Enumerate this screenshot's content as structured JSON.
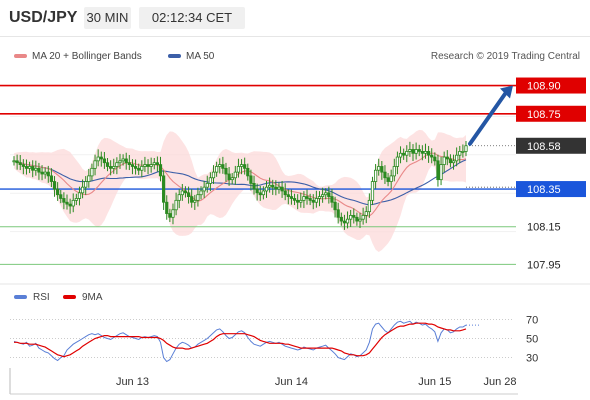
{
  "header": {
    "symbol": "USD/JPY",
    "timeframe": "30 MIN",
    "time": "02:12:34 CET"
  },
  "legend": {
    "ma20_label": "MA 20 + Bollinger Bands",
    "ma50_label": "MA 50",
    "credit": "Research © 2019 Trading Central"
  },
  "colors": {
    "candle": "#2b8a20",
    "bollinger_fill": "#fcd9d9",
    "ma20": "#e98888",
    "ma50": "#3c5fa8",
    "resistance": "#e00000",
    "support": "#7bc87b",
    "pivot": "#1a56db",
    "last": "#333333",
    "arrow": "#2456a4",
    "rsi": "#5a7fd6",
    "rsi_ma": "#e00000"
  },
  "chart_data": [
    {
      "type": "line",
      "name": "price",
      "ylim": [
        107.92,
        108.94
      ],
      "levels": [
        {
          "value": 108.9,
          "label": "108.90",
          "kind": "resistance"
        },
        {
          "value": 108.75,
          "label": "108.75",
          "kind": "resistance"
        },
        {
          "value": 108.58,
          "label": "108.58",
          "kind": "last"
        },
        {
          "value": 108.35,
          "label": "108.35",
          "kind": "pivot"
        },
        {
          "value": 108.15,
          "label": "108.15",
          "kind": "support"
        },
        {
          "value": 107.95,
          "label": "107.95",
          "kind": "support"
        }
      ],
      "last_value": 108.58,
      "forecast": {
        "from": 108.58,
        "to": 108.9
      },
      "x_ticks": [
        "Jun 13",
        "Jun 14",
        "Jun 15",
        "Jun 28"
      ],
      "series": [
        {
          "values": [
            108.5,
            108.49,
            108.48,
            108.47,
            108.46,
            108.47,
            108.45,
            108.46,
            108.44,
            108.43,
            108.44,
            108.42,
            108.39,
            108.35,
            108.32,
            108.3,
            108.28,
            108.27,
            108.26,
            108.29,
            108.3,
            108.33,
            108.36,
            108.39,
            108.42,
            108.46,
            108.5,
            108.52,
            108.51,
            108.49,
            108.47,
            108.46,
            108.47,
            108.49,
            108.5,
            108.51,
            108.49,
            108.48,
            108.47,
            108.46,
            108.45,
            108.47,
            108.48,
            108.47,
            108.48,
            108.49,
            108.48,
            108.42,
            108.28,
            108.22,
            108.2,
            108.24,
            108.29,
            108.32,
            108.34,
            108.33,
            108.31,
            108.28,
            108.29,
            108.32,
            108.34,
            108.36,
            108.38,
            108.41,
            108.44,
            108.47,
            108.48,
            108.46,
            108.43,
            108.4,
            108.41,
            108.44,
            108.47,
            108.48,
            108.46,
            108.42,
            108.38,
            108.35,
            108.33,
            108.32,
            108.34,
            108.36,
            108.37,
            108.36,
            108.35,
            108.36,
            108.34,
            108.32,
            108.31,
            108.3,
            108.29,
            108.28,
            108.29,
            108.31,
            108.3,
            108.29,
            108.28,
            108.3,
            108.31,
            108.32,
            108.33,
            108.31,
            108.28,
            108.24,
            108.2,
            108.18,
            108.17,
            108.19,
            108.21,
            108.2,
            108.18,
            108.19,
            108.21,
            108.23,
            108.29,
            108.39,
            108.45,
            108.47,
            108.44,
            108.41,
            108.39,
            108.42,
            108.47,
            108.52,
            108.54,
            108.53,
            108.55,
            108.56,
            108.54,
            108.56,
            108.55,
            108.54,
            108.55,
            108.53,
            108.52,
            108.5,
            108.4,
            108.48,
            108.52,
            108.51,
            108.49,
            108.5,
            108.53,
            108.55,
            108.55,
            108.58
          ]
        }
      ]
    },
    {
      "type": "line",
      "name": "rsi",
      "ylim": [
        15,
        85
      ],
      "y_ticks": [
        70,
        50,
        30
      ],
      "series": [
        {
          "name": "RSI",
          "values": [
            47,
            46,
            45,
            44,
            46,
            42,
            43,
            45,
            40,
            38,
            36,
            35,
            32,
            29,
            27,
            30,
            32,
            38,
            41,
            44,
            46,
            48,
            50,
            52,
            54,
            55,
            54,
            55,
            53,
            51,
            50,
            49,
            51,
            53,
            55,
            56,
            54,
            52,
            51,
            50,
            49,
            51,
            52,
            51,
            52,
            53,
            52,
            46,
            30,
            26,
            28,
            34,
            40,
            44,
            46,
            45,
            43,
            40,
            41,
            44,
            46,
            48,
            50,
            53,
            56,
            59,
            60,
            57,
            53,
            50,
            51,
            54,
            57,
            58,
            56,
            51,
            47,
            44,
            43,
            42,
            44,
            46,
            47,
            46,
            45,
            46,
            44,
            42,
            41,
            40,
            39,
            38,
            39,
            41,
            40,
            39,
            38,
            40,
            41,
            42,
            43,
            40,
            37,
            34,
            30,
            29,
            28,
            31,
            34,
            33,
            31,
            32,
            35,
            38,
            46,
            60,
            65,
            66,
            62,
            58,
            56,
            60,
            64,
            67,
            68,
            66,
            67,
            68,
            65,
            67,
            66,
            64,
            65,
            62,
            60,
            57,
            47,
            56,
            60,
            59,
            56,
            57,
            60,
            62,
            62,
            64
          ]
        },
        {
          "name": "9MA",
          "values": [
            46,
            46,
            45,
            45,
            45,
            44,
            44,
            44,
            43,
            42,
            41,
            39,
            37,
            35,
            33,
            32,
            31,
            32,
            33,
            35,
            37,
            39,
            42,
            44,
            46,
            48,
            50,
            51,
            52,
            53,
            53,
            52,
            52,
            52,
            52,
            52,
            52,
            52,
            52,
            52,
            52,
            51,
            51,
            51,
            51,
            51,
            51,
            50,
            48,
            45,
            43,
            41,
            40,
            40,
            40,
            39,
            39,
            40,
            41,
            42,
            43,
            44,
            45,
            47,
            49,
            52,
            54,
            55,
            55,
            55,
            55,
            55,
            55,
            55,
            55,
            54,
            53,
            52,
            50,
            48,
            47,
            46,
            45,
            45,
            45,
            45,
            45,
            44,
            44,
            43,
            42,
            41,
            40,
            40,
            40,
            40,
            40,
            40,
            40,
            40,
            40,
            40,
            40,
            39,
            38,
            37,
            35,
            34,
            33,
            33,
            32,
            32,
            32,
            33,
            35,
            39,
            43,
            47,
            51,
            54,
            56,
            58,
            60,
            62,
            63,
            63,
            64,
            65,
            65,
            66,
            66,
            66,
            66,
            65,
            65,
            64,
            62,
            61,
            60,
            59,
            59,
            58,
            58,
            58,
            59,
            60
          ]
        }
      ]
    }
  ]
}
